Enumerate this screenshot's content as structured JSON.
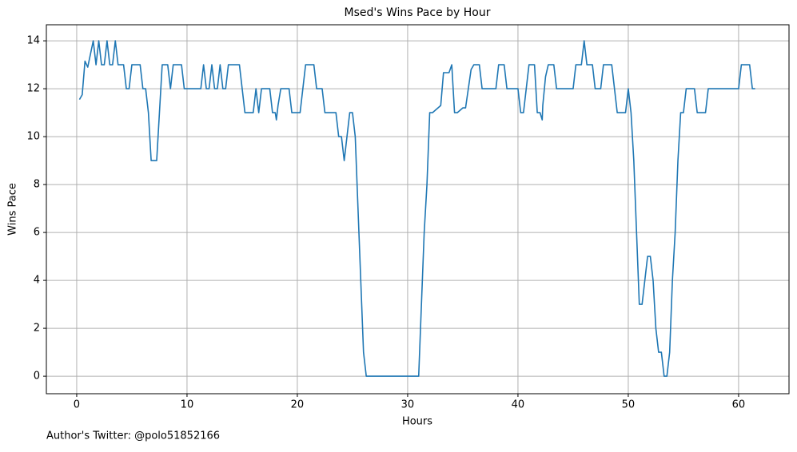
{
  "chart_data": {
    "type": "line",
    "title": "Msed's Wins Pace by Hour",
    "x_label": "Hours",
    "y_label": "Wins Pace",
    "footnote": "Author's Twitter: @polo51852166",
    "color": "#1f77b4",
    "grid": true,
    "xlim": [
      -2.75,
      64.57
    ],
    "ylim": [
      -0.73,
      14.67
    ],
    "xticks": [
      0,
      10,
      20,
      30,
      40,
      50,
      60
    ],
    "yticks": [
      0,
      2,
      4,
      6,
      8,
      10,
      12,
      14
    ],
    "x": [
      0.25,
      0.5,
      0.75,
      1.0,
      1.5,
      1.75,
      2.0,
      2.25,
      2.5,
      2.75,
      3.0,
      3.25,
      3.5,
      3.75,
      4.25,
      4.5,
      4.75,
      5.0,
      5.25,
      5.75,
      6.0,
      6.25,
      6.5,
      6.75,
      7.25,
      7.5,
      7.75,
      8.25,
      8.5,
      8.75,
      9.5,
      9.75,
      11.25,
      11.5,
      11.75,
      12.0,
      12.25,
      12.5,
      12.75,
      13.0,
      13.25,
      13.5,
      13.75,
      14.75,
      15.0,
      15.25,
      16.0,
      16.25,
      16.5,
      16.75,
      17.5,
      17.75,
      18.0,
      18.1,
      18.25,
      18.5,
      19.25,
      19.5,
      20.25,
      20.5,
      20.75,
      21.5,
      21.75,
      22.25,
      22.5,
      23.5,
      23.75,
      24.0,
      24.25,
      24.5,
      24.75,
      25.0,
      25.25,
      25.5,
      25.75,
      26.0,
      26.25,
      31.0,
      31.25,
      31.5,
      31.75,
      32.0,
      32.25,
      32.5,
      32.75,
      33.0,
      33.25,
      33.75,
      34.0,
      34.25,
      34.5,
      34.75,
      35.0,
      35.25,
      35.5,
      35.75,
      36.0,
      36.5,
      36.75,
      38.0,
      38.25,
      38.75,
      39.0,
      40.0,
      40.25,
      40.5,
      40.75,
      41.0,
      41.5,
      41.75,
      42.0,
      42.2,
      42.25,
      42.5,
      42.75,
      43.25,
      43.5,
      45.0,
      45.25,
      45.75,
      46.0,
      46.25,
      46.75,
      47.0,
      47.5,
      47.75,
      48.5,
      48.75,
      49.0,
      49.75,
      50.0,
      50.25,
      50.5,
      50.75,
      51.0,
      51.25,
      51.5,
      51.75,
      52.0,
      52.25,
      52.5,
      52.75,
      53.0,
      53.25,
      53.5,
      53.75,
      54.0,
      54.25,
      54.5,
      54.75,
      55.0,
      55.25,
      56.0,
      56.25,
      57.0,
      57.25,
      60.0,
      60.25,
      61.0,
      61.25,
      61.5
    ],
    "values": [
      11.55,
      11.75,
      13.15,
      12.9,
      14,
      13,
      14,
      13,
      13,
      14,
      13,
      13,
      14,
      13,
      13,
      12,
      12,
      13,
      13,
      13,
      12,
      12,
      11,
      9,
      9,
      11,
      13,
      13,
      12,
      13,
      13,
      12,
      12,
      13,
      12,
      12,
      13,
      12,
      12,
      13,
      12,
      12,
      13,
      13,
      12,
      11,
      11,
      12,
      11,
      12,
      12,
      11,
      11,
      10.7,
      11.3,
      12,
      12,
      11,
      11,
      12,
      13,
      13,
      12,
      12,
      11,
      11,
      10,
      10,
      9,
      10,
      11,
      11,
      10,
      7,
      4,
      1,
      0,
      0,
      3,
      6,
      8,
      11,
      11,
      11.1,
      11.2,
      11.3,
      12.67,
      12.67,
      13,
      11,
      11,
      11.1,
      11.2,
      11.2,
      12,
      12.8,
      13,
      13,
      12,
      12,
      13,
      13,
      12,
      12,
      11,
      11,
      12,
      13,
      13,
      11,
      11,
      10.7,
      11.3,
      12.5,
      13,
      13,
      12,
      12,
      13,
      13,
      14,
      13,
      13,
      12,
      12,
      13,
      13,
      12,
      11,
      11,
      12,
      11,
      9,
      6,
      3,
      3,
      4,
      5,
      5,
      4,
      2,
      1,
      1,
      0,
      0,
      1,
      4,
      6,
      9,
      11,
      11,
      12,
      12,
      11,
      11,
      12,
      12,
      13,
      13,
      12,
      12
    ]
  }
}
